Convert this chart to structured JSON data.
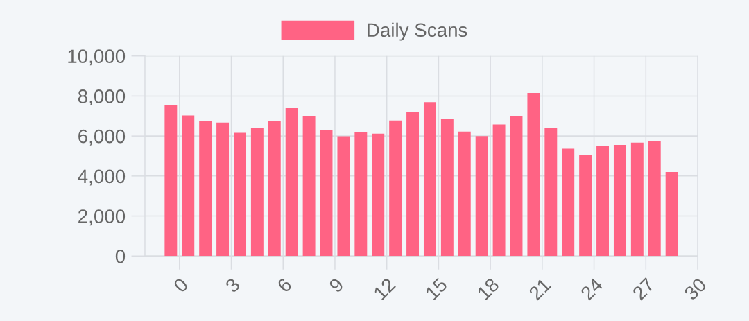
{
  "chart_data": {
    "type": "bar",
    "x": [
      -0.5,
      0.5,
      1.5,
      2.5,
      3.5,
      4.5,
      5.5,
      6.5,
      7.5,
      8.5,
      9.5,
      10.5,
      11.5,
      12.5,
      13.5,
      14.5,
      15.5,
      16.5,
      17.5,
      18.5,
      19.5,
      20.5,
      21.5,
      22.5,
      23.5,
      24.5,
      25.5,
      26.5,
      27.5,
      28.5
    ],
    "series": [
      {
        "name": "Daily Scans",
        "color": "#ff6384",
        "values": [
          7530,
          7030,
          6760,
          6670,
          6160,
          6410,
          6770,
          7390,
          7000,
          6310,
          5990,
          6190,
          6120,
          6780,
          7190,
          7690,
          6870,
          6220,
          6000,
          6580,
          7000,
          8150,
          6410,
          5360,
          5060,
          5500,
          5550,
          5670,
          5730,
          4200
        ]
      }
    ],
    "xlim": [
      -2,
      30
    ],
    "xticks": [
      0,
      3,
      6,
      9,
      12,
      15,
      18,
      21,
      24,
      27,
      30
    ],
    "ylim": [
      0,
      10000
    ],
    "yticks": [
      0,
      {
        "value": 2000,
        "label": "2,000"
      },
      {
        "value": 4000,
        "label": "4,000"
      },
      {
        "value": 6000,
        "label": "6,000"
      },
      {
        "value": 8000,
        "label": "8,000"
      },
      {
        "value": 10000,
        "label": "10,000"
      }
    ],
    "grid": true,
    "legend": "top"
  }
}
